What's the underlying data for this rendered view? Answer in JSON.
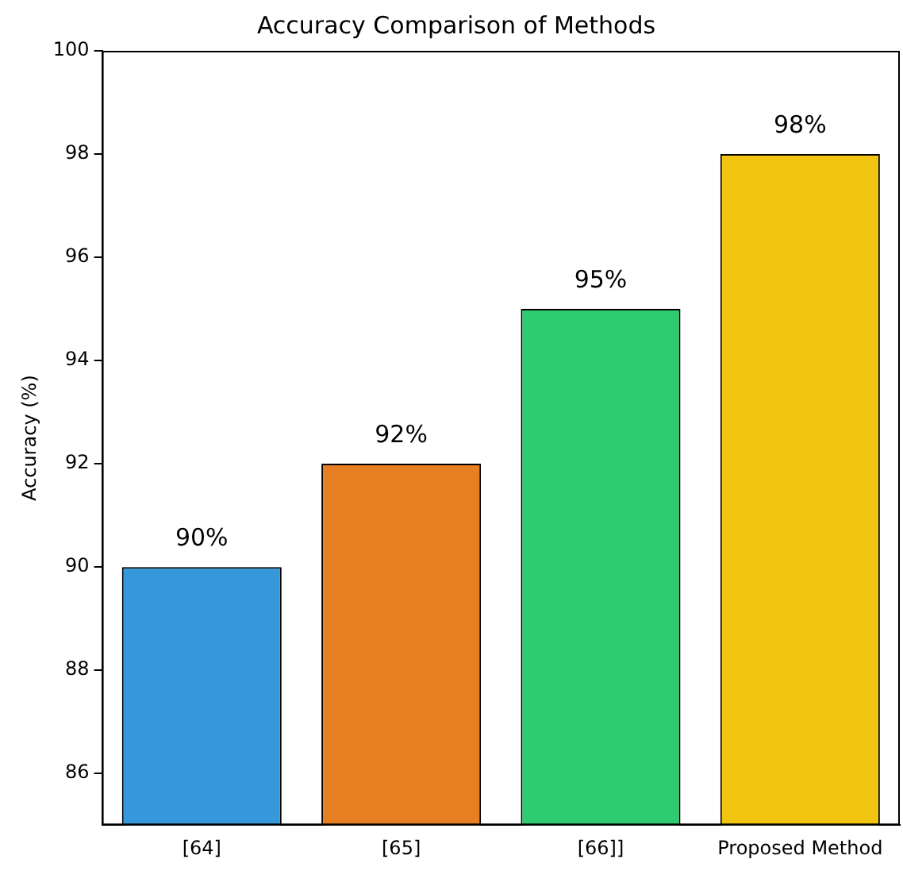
{
  "chart_data": {
    "type": "bar",
    "title": "Accuracy Comparison of Methods",
    "ylabel": "Accuracy (%)",
    "categories": [
      "[64]",
      "[65]",
      "[66]]",
      "Proposed Method"
    ],
    "values": [
      90,
      92,
      95,
      98
    ],
    "colors": [
      "#3498db",
      "#e67e22",
      "#2ecc71",
      "#f1c40f"
    ],
    "value_labels": [
      "90%",
      "92%",
      "95%",
      "98%"
    ],
    "ylim": [
      85,
      100
    ],
    "yticks": [
      86,
      88,
      90,
      92,
      94,
      96,
      98,
      100
    ],
    "grid": false,
    "legend": false
  }
}
